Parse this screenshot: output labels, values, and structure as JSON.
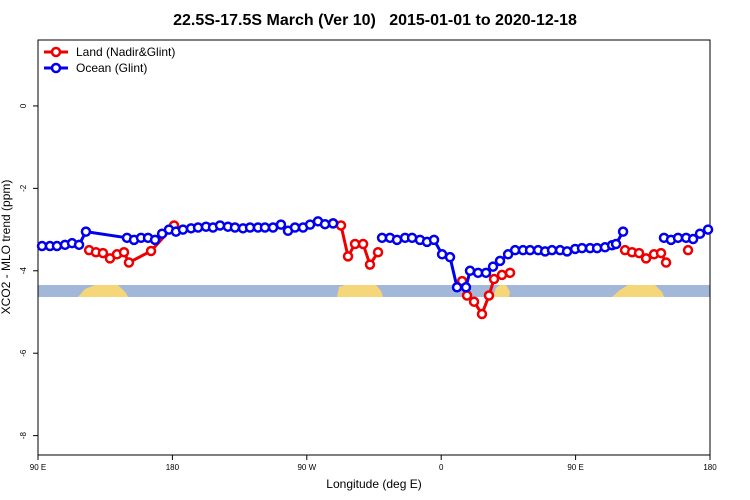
{
  "chart_data": {
    "type": "line",
    "title": "22.5S-17.5S March (Ver 10)   2015-01-01 to 2020-12-18",
    "x_label": "Longitude (deg E)",
    "y_label": "XCO2 - MLO trend (ppm)",
    "xlim": [
      90,
      540
    ],
    "ylim": [
      -8.47,
      1.6
    ],
    "xticks": [
      {
        "value": 90,
        "label": "90 E"
      },
      180,
      {
        "value": 270,
        "label": "90 W"
      },
      {
        "value": 360,
        "label": "0"
      },
      {
        "value": 450,
        "label": "90 E"
      },
      {
        "value": 540,
        "label": "180"
      }
    ],
    "yticks": [
      0,
      -2,
      -4,
      -6,
      -8
    ],
    "legend": "top-left",
    "series": [
      {
        "name": "Land (Nadir&Glint)",
        "color": "#ee0000",
        "x": [
          124.2,
          128.8,
          133.5,
          138.2,
          142.9,
          147.6,
          150.9,
          165.7,
          181.1,
          null,
          287.6,
          292.9,
          297.6,
          302.3,
          307.7,
          312.3,
          317.7,
          null,
          374.0,
          377.3,
          382.0,
          387.3,
          392.0,
          395.4,
          400.7,
          406.1,
          null,
          483.1,
          487.8,
          492.5,
          497.2,
          502.5,
          507.2,
          510.6,
          null,
          525.3
        ],
        "values": [
          -3.5,
          -3.55,
          -3.57,
          -3.7,
          -3.6,
          -3.55,
          -3.8,
          -3.52,
          -2.9,
          null,
          -2.85,
          -2.9,
          -3.65,
          -3.35,
          -3.35,
          -3.85,
          -3.55,
          null,
          -4.25,
          -4.6,
          -4.75,
          -5.05,
          -4.6,
          -4.2,
          -4.1,
          -4.05,
          null,
          -3.5,
          -3.55,
          -3.57,
          -3.7,
          -3.6,
          -3.57,
          -3.8,
          null,
          -3.5
        ]
      },
      {
        "name": "Ocean (Glint)",
        "color": "#0000ee",
        "x": [
          92.7,
          98.0,
          102.7,
          108.1,
          112.8,
          117.5,
          122.1,
          149.6,
          154.3,
          159.0,
          163.7,
          168.4,
          173.1,
          177.7,
          182.4,
          187.1,
          192.5,
          197.2,
          202.5,
          207.2,
          211.9,
          217.2,
          221.9,
          227.3,
          232.0,
          237.3,
          242.0,
          247.4,
          252.7,
          257.4,
          262.1,
          267.5,
          272.2,
          277.5,
          282.2,
          287.6,
          null,
          320.4,
          325.7,
          330.4,
          335.8,
          340.5,
          345.8,
          350.5,
          355.2,
          360.6,
          365.9,
          370.6,
          376.6,
          379.3,
          384.7,
          390.0,
          394.7,
          399.4,
          404.8,
          409.5,
          414.8,
          419.5,
          424.9,
          429.6,
          434.2,
          439.6,
          444.3,
          449.7,
          454.3,
          459.7,
          464.4,
          469.7,
          474.4,
          477.1,
          481.8,
          null,
          509.2,
          513.9,
          518.6,
          524.0,
          528.7,
          533.3,
          538.7
        ],
        "values": [
          -3.4,
          -3.4,
          -3.4,
          -3.37,
          -3.33,
          -3.37,
          -3.05,
          -3.2,
          -3.25,
          -3.2,
          -3.2,
          -3.25,
          -3.1,
          -3.0,
          -3.05,
          -3.0,
          -2.97,
          -2.95,
          -2.93,
          -2.95,
          -2.9,
          -2.93,
          -2.95,
          -2.97,
          -2.95,
          -2.95,
          -2.95,
          -2.95,
          -2.88,
          -3.03,
          -2.95,
          -2.95,
          -2.88,
          -2.8,
          -2.87,
          -2.85,
          null,
          -3.2,
          -3.2,
          -3.25,
          -3.2,
          -3.2,
          -3.25,
          -3.3,
          -3.25,
          -3.6,
          -3.67,
          -4.4,
          -4.4,
          -4.0,
          -4.05,
          -4.05,
          -3.9,
          -3.76,
          -3.6,
          -3.5,
          -3.5,
          -3.5,
          -3.5,
          -3.53,
          -3.5,
          -3.5,
          -3.53,
          -3.47,
          -3.45,
          -3.45,
          -3.45,
          -3.43,
          -3.38,
          -3.35,
          -3.05,
          null,
          -3.2,
          -3.25,
          -3.2,
          -3.2,
          -3.23,
          -3.1,
          -3.0
        ]
      }
    ]
  }
}
